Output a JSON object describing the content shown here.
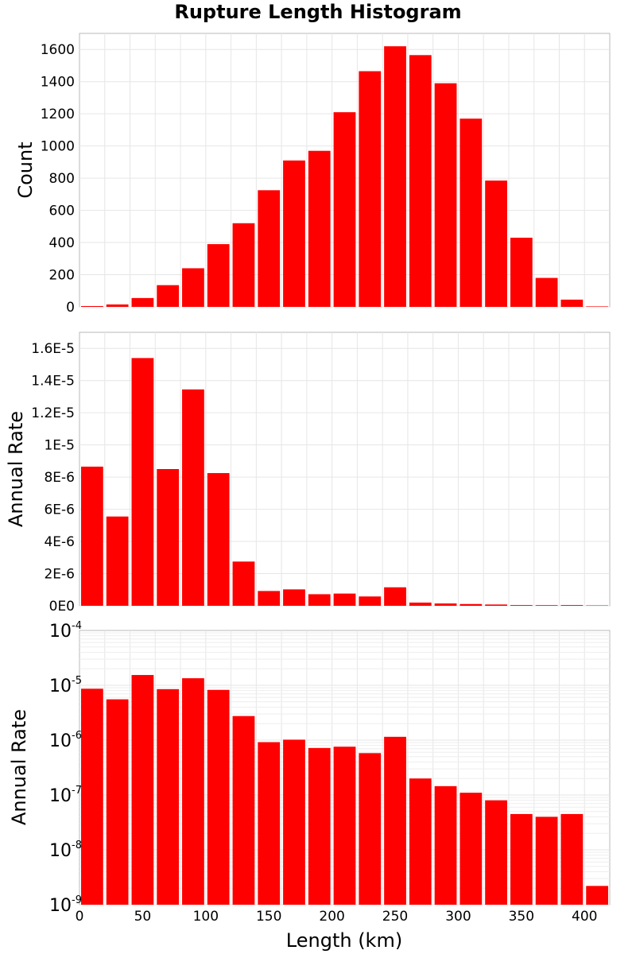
{
  "title": "Rupture Length Histogram",
  "colors": {
    "bar": "#ff0000",
    "frame": "#b8b8b8",
    "grid": "#e6e6e6"
  },
  "chart_data": [
    {
      "type": "bar",
      "panel": "top",
      "ylabel": "Count",
      "ylim": [
        0,
        1700
      ],
      "yticks": [
        0,
        200,
        400,
        600,
        800,
        1000,
        1200,
        1400,
        1600
      ],
      "ytick_labels": [
        "0",
        "200",
        "400",
        "600",
        "800",
        "1000",
        "1200",
        "1400",
        "1600"
      ],
      "xlim": [
        0,
        420
      ],
      "bin_width": 20,
      "bin_centers": [
        10,
        30,
        50,
        70,
        90,
        110,
        130,
        150,
        170,
        190,
        210,
        230,
        250,
        270,
        290,
        310,
        330,
        350,
        370,
        390,
        410
      ],
      "values": [
        5,
        15,
        55,
        135,
        240,
        390,
        520,
        725,
        910,
        970,
        1210,
        1465,
        1620,
        1565,
        1390,
        1170,
        785,
        430,
        180,
        45,
        3
      ],
      "grid": true
    },
    {
      "type": "bar",
      "panel": "middle",
      "ylabel": "Annual Rate",
      "ylim": [
        0,
        1.7e-05
      ],
      "yticks": [
        0,
        2e-06,
        4e-06,
        6e-06,
        8e-06,
        1e-05,
        1.2e-05,
        1.4e-05,
        1.6e-05
      ],
      "ytick_labels": [
        "0E0",
        "2E-6",
        "4E-6",
        "6E-6",
        "8E-6",
        "1E-5",
        "1.2E-5",
        "1.4E-5",
        "1.6E-5"
      ],
      "xlim": [
        0,
        420
      ],
      "bin_width": 20,
      "bin_centers": [
        10,
        30,
        50,
        70,
        90,
        110,
        130,
        150,
        170,
        190,
        210,
        230,
        250,
        270,
        290,
        310,
        330,
        350,
        370,
        390,
        410
      ],
      "values": [
        8.65e-06,
        5.55e-06,
        1.54e-05,
        8.5e-06,
        1.345e-05,
        8.25e-06,
        2.75e-06,
        9.2e-07,
        1.02e-06,
        7.2e-07,
        7.6e-07,
        5.8e-07,
        1.15e-06,
        2e-07,
        1.45e-07,
        1.1e-07,
        8e-08,
        4.5e-08,
        4e-08,
        4.5e-08,
        2.2e-09
      ],
      "grid": true
    },
    {
      "type": "bar",
      "panel": "bottom",
      "ylabel": "Annual Rate",
      "yscale": "log",
      "ylim": [
        1e-09,
        0.0001
      ],
      "ytick_bases": [
        "10",
        "10",
        "10",
        "10",
        "10",
        "10"
      ],
      "ytick_exponents": [
        "-9",
        "-8",
        "-7",
        "-6",
        "-5",
        "-4"
      ],
      "xlim": [
        0,
        420
      ],
      "xticks": [
        0,
        50,
        100,
        150,
        200,
        250,
        300,
        350,
        400
      ],
      "xtick_labels": [
        "0",
        "50",
        "100",
        "150",
        "200",
        "250",
        "300",
        "350",
        "400"
      ],
      "xlabel": "Length (km)",
      "bin_width": 20,
      "bin_centers": [
        10,
        30,
        50,
        70,
        90,
        110,
        130,
        150,
        170,
        190,
        210,
        230,
        250,
        270,
        290,
        310,
        330,
        350,
        370,
        390,
        410
      ],
      "values": [
        8.65e-06,
        5.55e-06,
        1.54e-05,
        8.5e-06,
        1.345e-05,
        8.25e-06,
        2.75e-06,
        9.2e-07,
        1.02e-06,
        7.2e-07,
        7.6e-07,
        5.8e-07,
        1.15e-06,
        2e-07,
        1.45e-07,
        1.1e-07,
        8e-08,
        4.5e-08,
        4e-08,
        4.5e-08,
        2.2e-09
      ],
      "grid": true
    }
  ]
}
